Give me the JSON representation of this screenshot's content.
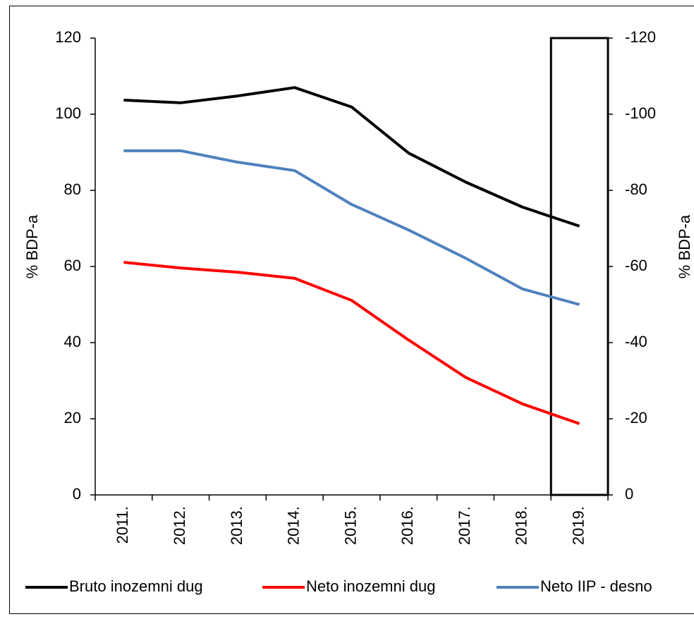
{
  "chart_data": {
    "type": "line",
    "categories": [
      "2011.",
      "2012.",
      "2013.",
      "2014.",
      "2015.",
      "2016.",
      "2017.",
      "2018.",
      "2019."
    ],
    "series": [
      {
        "name": "Bruto inozemni dug",
        "color": "#000000",
        "values": [
          103.7,
          103,
          104.8,
          107,
          101.9,
          89.8,
          82.2,
          75.6,
          70.6
        ]
      },
      {
        "name": "Neto inozemni dug",
        "color": "#ff0000",
        "values": [
          61.1,
          59.6,
          58.5,
          56.9,
          51.1,
          40.7,
          30.9,
          23.9,
          18.7
        ]
      },
      {
        "name": "Neto IIP - desno",
        "color": "#4f81bd",
        "axis": "y2",
        "values": [
          -90.4,
          -90.4,
          -87.4,
          -85.2,
          -76.3,
          -69.6,
          -62.2,
          -54.1,
          -50
        ]
      }
    ],
    "ylabel": "% BDP-a",
    "y2label": "% BDP-a",
    "ylim": [
      0,
      120
    ],
    "yticks": [
      0,
      20,
      40,
      60,
      80,
      100,
      120
    ],
    "y2lim": [
      0,
      -120
    ],
    "y2ticks": [
      0,
      -20,
      -40,
      -60,
      -80,
      -100,
      -120
    ],
    "legend": "bottom"
  }
}
